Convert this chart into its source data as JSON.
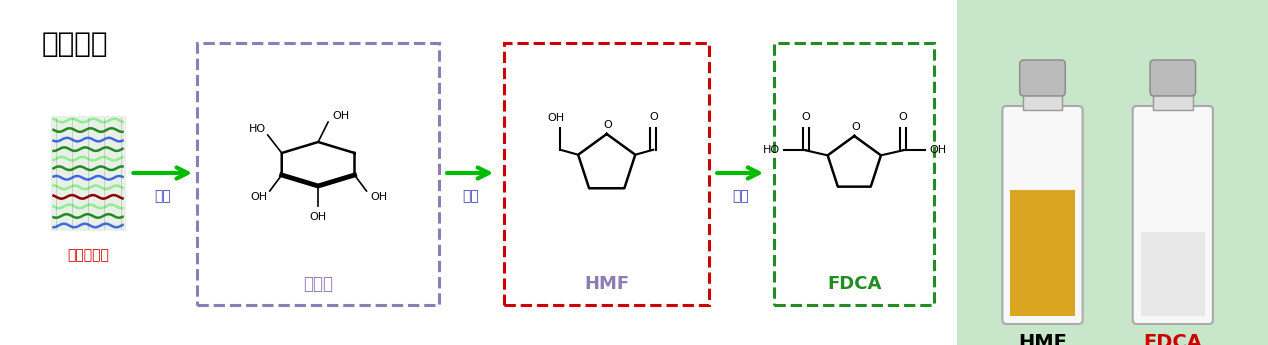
{
  "title": "技术路线",
  "title_color": "#000000",
  "title_fontsize": 20,
  "bg_color": "#d0d0d0",
  "main_panel_facecolor": "white",
  "main_panel_edgecolor": "#bbbbbb",
  "right_panel_color": "#c8e6c9",
  "steps_cn": [
    "木质纤维素",
    "葡萄糖",
    "HMF",
    "FDCA"
  ],
  "steps_color": [
    "#cc0000",
    "#8b7db5",
    "#8b7db5",
    "#228b22"
  ],
  "box_colors": [
    "#8b7db5",
    "#cc0000",
    "#228b22"
  ],
  "arrows_cn": [
    "水解",
    "脱水",
    "氧化"
  ],
  "arrow_color": "#00aa00",
  "arrow_label_color": "#4040c0",
  "ligno_colors": [
    "#90EE90",
    "#228B22",
    "#4169E1",
    "#228B22",
    "#90EE90",
    "#228B22",
    "#4169E1",
    "#90EE90",
    "#8B0000",
    "#90EE90",
    "#228B22",
    "#4169E1"
  ],
  "photo_bg": "#c8e6c9",
  "hmf_label_color": "#8b7db5",
  "fdca_label_color": "#228b22",
  "vial1_liquid": "#DAA520",
  "vial2_liquid": "#eeeeee",
  "cap_color": "#bbbbbb"
}
